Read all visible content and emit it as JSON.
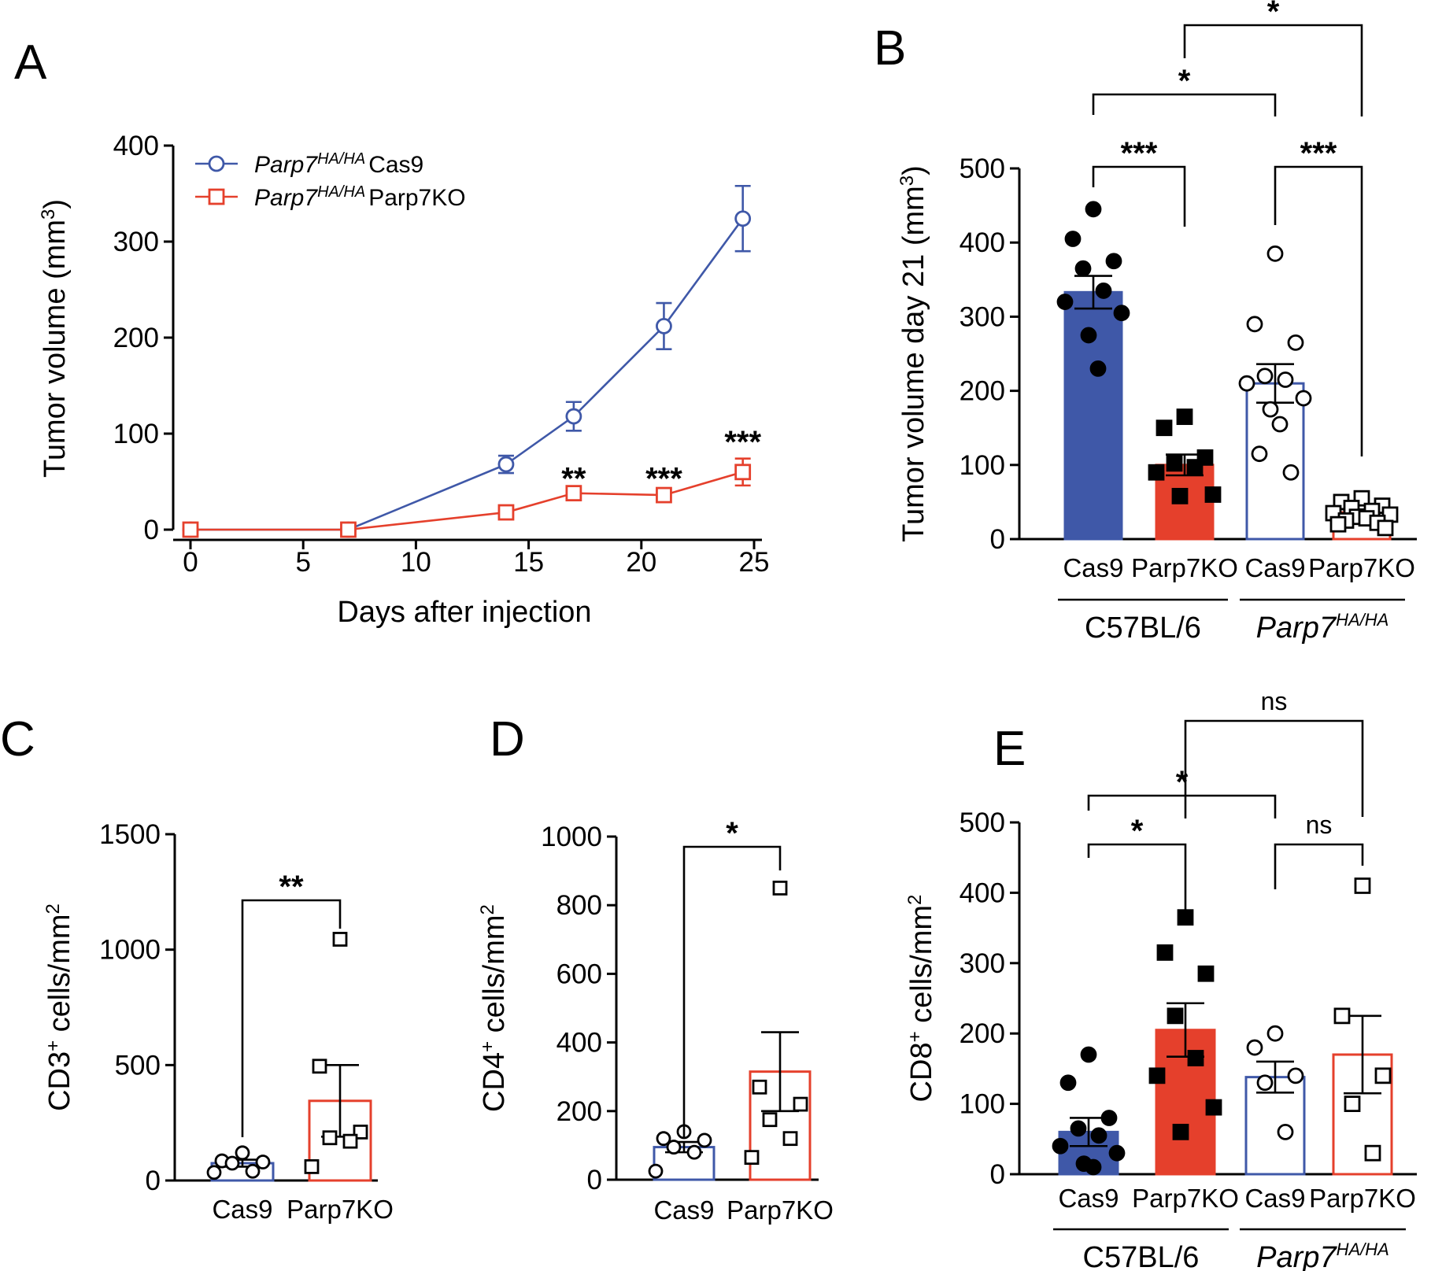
{
  "chart_data": [
    {
      "panel": "A",
      "type": "line",
      "xlabel": "Days after injection",
      "ylabel": "Tumor volume (mm3)",
      "ylabel_parts": [
        "Tumor volume (mm",
        "3",
        ")"
      ],
      "xlim": [
        0,
        25
      ],
      "ylim": [
        0,
        400
      ],
      "xticks": [
        "0",
        "5",
        "10",
        "15",
        "20",
        "25"
      ],
      "yticks": [
        "0",
        "100",
        "200",
        "300",
        "400"
      ],
      "series": [
        {
          "name": "Parp7HA/HA Cas9",
          "legend_italic": "Parp7",
          "legend_sup": "HA/HA",
          "legend_plain": "Cas9",
          "color": "#3f58a8",
          "marker": "circle",
          "x": [
            0,
            7,
            14,
            17,
            21,
            24.5
          ],
          "y": [
            0,
            0,
            68,
            118,
            212,
            324
          ],
          "err": [
            0,
            0,
            9,
            15,
            24,
            34
          ]
        },
        {
          "name": "Parp7HA/HA Parp7KO",
          "legend_italic": "Parp7",
          "legend_sup": "HA/HA",
          "legend_plain": "Parp7KO",
          "color": "#e5402c",
          "marker": "square",
          "x": [
            0,
            7,
            14,
            17,
            21,
            24.5
          ],
          "y": [
            0,
            0,
            18,
            38,
            36,
            60
          ],
          "err": [
            0,
            0,
            0,
            0,
            0,
            14
          ]
        }
      ],
      "annotations": [
        {
          "x": 17,
          "y": 52,
          "text": "**"
        },
        {
          "x": 21,
          "y": 52,
          "text": "***"
        },
        {
          "x": 24.5,
          "y": 90,
          "text": "***"
        }
      ]
    },
    {
      "panel": "B",
      "type": "bar",
      "ylabel": "Tumor volume day 21 (mm3)",
      "ylabel_parts": [
        "Tumor volume day 21 (mm",
        "3",
        ")"
      ],
      "ylim": [
        0,
        500
      ],
      "yticks": [
        "0",
        "100",
        "200",
        "300",
        "400",
        "500"
      ],
      "categories": [
        "Cas9",
        "Parp7KO",
        "Cas9",
        "Parp7KO"
      ],
      "groups": [
        {
          "label": "C57BL/6",
          "italic": false,
          "sup": ""
        },
        {
          "label": "Parp7",
          "italic": true,
          "sup": "HA/HA"
        }
      ],
      "bars": [
        {
          "value": 333,
          "sem": 22,
          "fill": "#3f58a8",
          "stroke": "#3f58a8",
          "marker": "circle",
          "filled": true,
          "points": [
            445,
            405,
            375,
            365,
            335,
            320,
            305,
            275,
            230
          ]
        },
        {
          "value": 100,
          "sem": 14,
          "fill": "#e5402c",
          "stroke": "#e5402c",
          "marker": "square",
          "filled": true,
          "points": [
            165,
            150,
            110,
            102,
            97,
            90,
            60,
            58
          ]
        },
        {
          "value": 210,
          "sem": 26,
          "fill": "#ffffff",
          "stroke": "#3f58a8",
          "marker": "circle",
          "filled": false,
          "points": [
            385,
            290,
            265,
            220,
            215,
            210,
            190,
            175,
            155,
            115,
            90
          ]
        },
        {
          "value": 36,
          "sem": 4,
          "fill": "#ffffff",
          "stroke": "#e5402c",
          "marker": "square",
          "filled": false,
          "points": [
            55,
            50,
            45,
            42,
            38,
            35,
            33,
            30,
            28,
            25,
            22,
            20,
            15
          ]
        }
      ],
      "comparisons": [
        {
          "from": 0,
          "to": 1,
          "text": "***"
        },
        {
          "from": 2,
          "to": 3,
          "text": "***"
        },
        {
          "from": 0,
          "to": 2,
          "text": "*"
        },
        {
          "from": 1,
          "to": 3,
          "text": "*"
        }
      ]
    },
    {
      "panel": "C",
      "type": "bar",
      "ylabel": "CD3+ cells/mm2",
      "ylabel_parts": [
        "CD3",
        "+",
        " cells/mm",
        "2"
      ],
      "ylim": [
        0,
        1500
      ],
      "yticks": [
        "0",
        "500",
        "1000",
        "1500"
      ],
      "categories": [
        "Cas9",
        "Parp7KO"
      ],
      "bars": [
        {
          "value": 75,
          "sem": 15,
          "fill": "#ffffff",
          "stroke": "#3f58a8",
          "marker": "circle",
          "filled": false,
          "points": [
            120,
            85,
            80,
            75,
            40,
            35
          ]
        },
        {
          "value": 345,
          "sem": 155,
          "fill": "#ffffff",
          "stroke": "#e5402c",
          "marker": "square",
          "filled": false,
          "points": [
            1045,
            495,
            210,
            185,
            170,
            60
          ]
        }
      ],
      "comparisons": [
        {
          "from": 0,
          "to": 1,
          "text": "**"
        }
      ]
    },
    {
      "panel": "D",
      "type": "bar",
      "ylabel": "CD4+ cells/mm2",
      "ylabel_parts": [
        "CD4",
        "+",
        " cells/mm",
        "2"
      ],
      "ylim": [
        0,
        1000
      ],
      "yticks": [
        "0",
        "200",
        "400",
        "600",
        "800",
        "1000"
      ],
      "categories": [
        "Cas9",
        "Parp7KO"
      ],
      "bars": [
        {
          "value": 95,
          "sem": 15,
          "fill": "#ffffff",
          "stroke": "#3f58a8",
          "marker": "circle",
          "filled": false,
          "points": [
            140,
            120,
            115,
            95,
            80,
            25
          ]
        },
        {
          "value": 315,
          "sem": 115,
          "fill": "#ffffff",
          "stroke": "#e5402c",
          "marker": "square",
          "filled": false,
          "points": [
            850,
            270,
            220,
            175,
            120,
            65
          ]
        }
      ],
      "comparisons": [
        {
          "from": 0,
          "to": 1,
          "text": "*"
        }
      ]
    },
    {
      "panel": "E",
      "type": "bar",
      "ylabel": "CD8+ cells/mm2",
      "ylabel_parts": [
        "CD8",
        "+",
        " cells/mm",
        "2"
      ],
      "ylim": [
        0,
        500
      ],
      "yticks": [
        "0",
        "100",
        "200",
        "300",
        "400",
        "500"
      ],
      "categories": [
        "Cas9",
        "Parp7KO",
        "Cas9",
        "Parp7KO"
      ],
      "groups": [
        {
          "label": "C57BL/6",
          "italic": false,
          "sup": ""
        },
        {
          "label": "Parp7",
          "italic": true,
          "sup": "HA/HA"
        }
      ],
      "bars": [
        {
          "value": 60,
          "sem": 20,
          "fill": "#3f58a8",
          "stroke": "#3f58a8",
          "marker": "circle",
          "filled": true,
          "points": [
            170,
            130,
            80,
            65,
            55,
            40,
            30,
            15,
            10
          ]
        },
        {
          "value": 205,
          "sem": 38,
          "fill": "#e5402c",
          "stroke": "#e5402c",
          "marker": "square",
          "filled": true,
          "points": [
            365,
            315,
            285,
            225,
            165,
            140,
            95,
            60
          ]
        },
        {
          "value": 138,
          "sem": 22,
          "fill": "#ffffff",
          "stroke": "#3f58a8",
          "marker": "circle",
          "filled": false,
          "points": [
            200,
            180,
            140,
            130,
            60
          ]
        },
        {
          "value": 170,
          "sem": 55,
          "fill": "#ffffff",
          "stroke": "#e5402c",
          "marker": "square",
          "filled": false,
          "points": [
            410,
            225,
            140,
            100,
            30
          ]
        }
      ],
      "comparisons": [
        {
          "from": 0,
          "to": 1,
          "text": "*"
        },
        {
          "from": 2,
          "to": 3,
          "text": "ns"
        },
        {
          "from": 0,
          "to": 2,
          "text": "*"
        },
        {
          "from": 1,
          "to": 3,
          "text": "ns"
        }
      ]
    }
  ]
}
